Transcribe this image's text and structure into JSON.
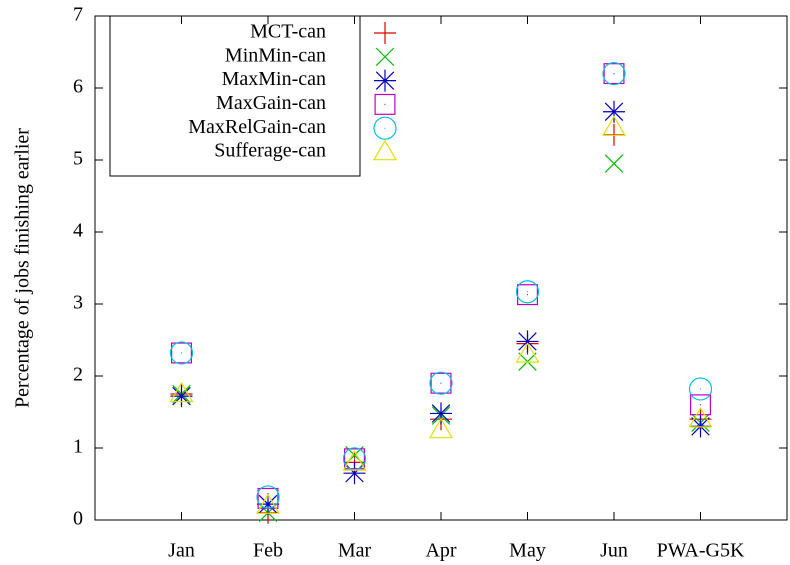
{
  "chart_data": {
    "type": "scatter",
    "y_label": "Percentage of jobs finishing earlier",
    "categories": [
      "Jan",
      "Feb",
      "Mar",
      "Apr",
      "May",
      "Jun",
      "PWA-G5K"
    ],
    "ylim": [
      0,
      7
    ],
    "yticks": [
      0,
      1,
      2,
      3,
      4,
      5,
      6,
      7
    ],
    "legend": "top-left",
    "series": [
      {
        "name": "MCT-can",
        "color": "#e00000",
        "marker": "plus",
        "values": [
          1.75,
          0.1,
          0.8,
          1.4,
          2.45,
          5.35,
          1.4
        ]
      },
      {
        "name": "MinMin-can",
        "color": "#00c000",
        "marker": "cross",
        "values": [
          1.75,
          0.1,
          0.9,
          1.45,
          2.2,
          4.95,
          1.35
        ]
      },
      {
        "name": "MaxMin-can",
        "color": "#0000c0",
        "marker": "star",
        "values": [
          1.72,
          0.22,
          0.65,
          1.48,
          2.48,
          5.67,
          1.3
        ]
      },
      {
        "name": "MaxGain-can",
        "color": "#c000c0",
        "marker": "square",
        "values": [
          2.32,
          0.3,
          0.85,
          1.9,
          3.13,
          6.2,
          1.6
        ]
      },
      {
        "name": "MaxRelGain-can",
        "color": "#00c0e0",
        "marker": "circle",
        "values": [
          2.32,
          0.32,
          0.85,
          1.9,
          3.17,
          6.2,
          1.82
        ]
      },
      {
        "name": "Sufferage-can",
        "color": "#e0e000",
        "marker": "triangle",
        "values": [
          1.75,
          0.2,
          0.8,
          1.25,
          2.3,
          5.45,
          1.4
        ]
      }
    ]
  }
}
